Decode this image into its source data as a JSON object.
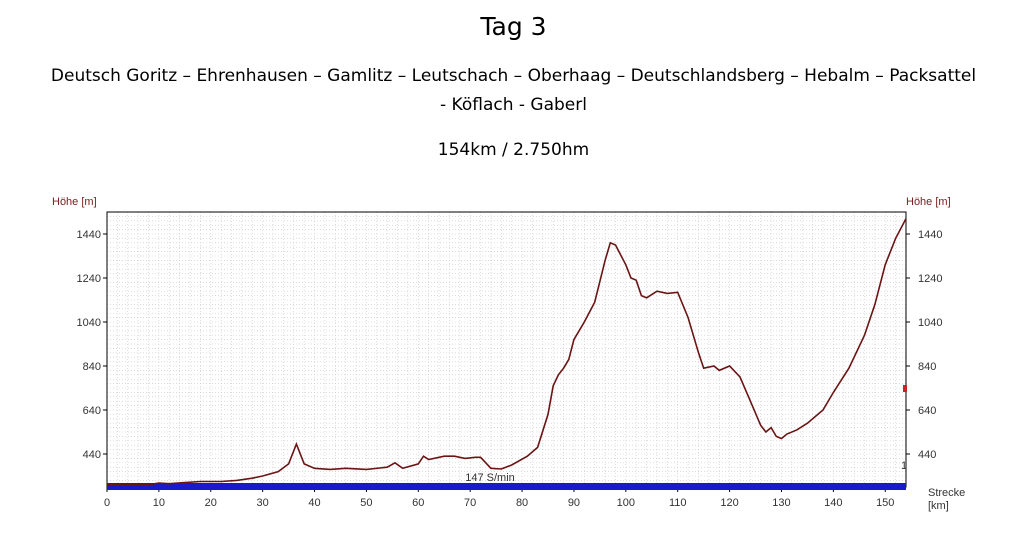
{
  "header": {
    "title": "Tag 3",
    "route_line1": "Deutsch Goritz – Ehrenhausen  – Gamlitz – Leutschach – Oberhaag – Deutschlandsberg  – Hebalm – Packsattel",
    "route_line2": "- Köflach - Gaberl",
    "stats": "154km / 2.750hm"
  },
  "chart_data": {
    "type": "area",
    "ylabel_left": "Höhe [m]",
    "ylabel_right": "Höhe [m]",
    "xlabel": "Strecke",
    "xlabel_unit": "[km]",
    "band_label": "147 S/min",
    "marker_label": "1",
    "xlim": [
      0,
      154
    ],
    "ylim": [
      290,
      1540
    ],
    "xticks": [
      0,
      10,
      20,
      30,
      40,
      50,
      60,
      70,
      80,
      90,
      100,
      110,
      120,
      130,
      140,
      150
    ],
    "yticks": [
      440,
      640,
      840,
      1040,
      1240,
      1440
    ],
    "grid": true,
    "colors": {
      "profile": "#6b1414",
      "band": "#1a1acc",
      "grid": "#c8c8c8",
      "marker": "#cc2222"
    },
    "series": [
      {
        "x": [
          0,
          8,
          10,
          12,
          15,
          18,
          22,
          25,
          28,
          30,
          33,
          35,
          36.5,
          38,
          40,
          43,
          46,
          50,
          54,
          55.5,
          57,
          60,
          61,
          62,
          65,
          67,
          69,
          71,
          72,
          74,
          76,
          78,
          81,
          83,
          85,
          86,
          87,
          88,
          89,
          90,
          92,
          94,
          96,
          97,
          98,
          100,
          101,
          102,
          103,
          104,
          106,
          108,
          110,
          112,
          114,
          115,
          117,
          118,
          120,
          122,
          124,
          126,
          127,
          128,
          129,
          130,
          131,
          133,
          135,
          138,
          140,
          143,
          146,
          148,
          150,
          152,
          154
        ],
        "y": [
          300,
          300,
          308,
          305,
          310,
          315,
          315,
          320,
          330,
          340,
          360,
          395,
          485,
          395,
          375,
          370,
          375,
          370,
          380,
          400,
          375,
          395,
          430,
          415,
          430,
          430,
          420,
          425,
          425,
          375,
          372,
          390,
          430,
          470,
          620,
          750,
          800,
          830,
          870,
          960,
          1040,
          1130,
          1320,
          1400,
          1390,
          1300,
          1240,
          1230,
          1160,
          1150,
          1180,
          1170,
          1175,
          1060,
          900,
          830,
          840,
          820,
          840,
          790,
          680,
          570,
          540,
          560,
          520,
          510,
          530,
          550,
          580,
          640,
          720,
          830,
          980,
          1120,
          1300,
          1420,
          1510
        ]
      }
    ],
    "marker": {
      "x": 154,
      "y": 740
    }
  }
}
